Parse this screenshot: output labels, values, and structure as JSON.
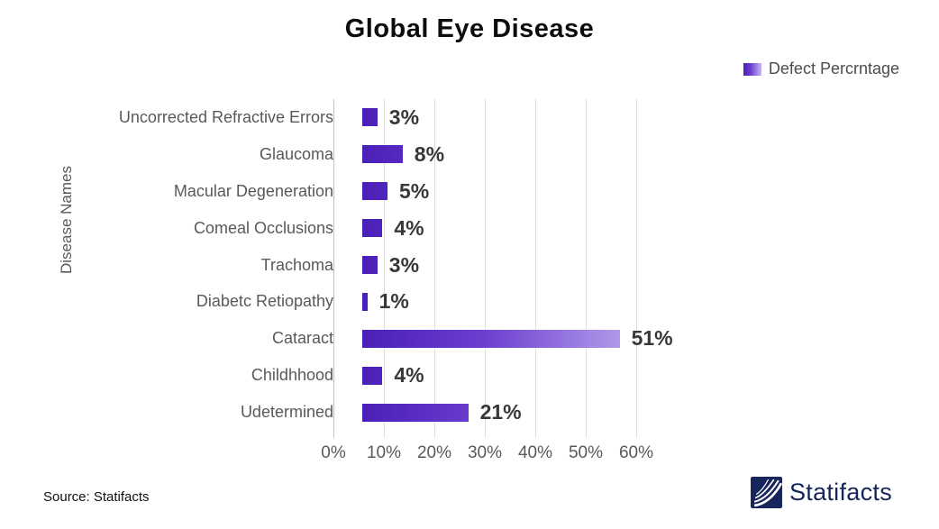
{
  "chart": {
    "title": "Global Eye Disease",
    "legend_label": "Defect Percrntage",
    "ylabel": "Disease Names",
    "source": "Source: Statifacts"
  },
  "brand": {
    "name": "Statifacts"
  },
  "chart_data": {
    "type": "bar",
    "orientation": "horizontal",
    "title": "Global Eye Disease",
    "xlabel": "",
    "ylabel": "Disease Names",
    "categories": [
      "Uncorrected Refractive Errors",
      "Glaucoma",
      "Macular Degeneration",
      "Comeal Occlusions",
      "Trachoma",
      "Diabetc Retiopathy",
      "Cataract",
      "Childhhood",
      "Udetermined"
    ],
    "values": [
      3,
      8,
      5,
      4,
      3,
      1,
      51,
      4,
      21
    ],
    "labels": [
      "3%",
      "8%",
      "5%",
      "4%",
      "3%",
      "1%",
      "51%",
      "4%",
      "21%"
    ],
    "xlim": [
      0,
      60
    ],
    "x_ticks": [
      "0%",
      "10%",
      "20%",
      "30%",
      "40%",
      "50%",
      "60%"
    ],
    "legend_entries": [
      "Defect Percrntage"
    ],
    "legend_position": "top-right",
    "grid": "vertical",
    "bar_color_start": "#4A1FB8",
    "bar_color_end": "#C7B6F2",
    "brand_color": "#16255C"
  }
}
